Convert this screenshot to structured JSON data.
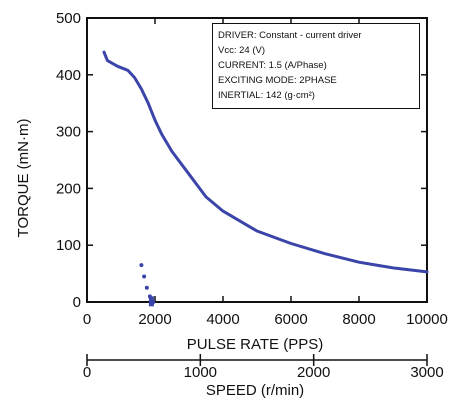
{
  "chart_data": {
    "type": "line",
    "xlabel": "PULSE RATE  (PPS)",
    "ylabel": "TORQUE  (mN·m)",
    "x2label": "SPEED  (r/min)",
    "xlim": [
      0,
      10000
    ],
    "ylim": [
      0,
      500
    ],
    "x2lim": [
      0,
      3000
    ],
    "xticks": [
      0,
      2000,
      4000,
      6000,
      8000,
      10000
    ],
    "yticks": [
      0,
      100,
      200,
      300,
      400,
      500
    ],
    "x2ticks": [
      0,
      1000,
      2000,
      3000
    ],
    "x_tick_labels": [
      "0",
      "2000",
      "4000",
      "6000",
      "8000",
      "10000"
    ],
    "y_tick_labels": [
      "0",
      "100",
      "200",
      "300",
      "400",
      "500"
    ],
    "x2_tick_labels": [
      "0",
      "1000",
      "2000",
      "3000"
    ],
    "grid": false,
    "line_color": "#3b44a8",
    "series": [
      {
        "x": [
          500,
          600,
          900,
          1200,
          1400,
          1600,
          1800,
          2000,
          2200,
          2500,
          3000,
          3500,
          4000,
          5000,
          6000,
          7000,
          8000,
          9000,
          10000
        ],
        "y": [
          440,
          425,
          415,
          408,
          395,
          375,
          350,
          320,
          295,
          265,
          225,
          185,
          160,
          125,
          103,
          85,
          70,
          60,
          53
        ]
      }
    ],
    "dotted_series": {
      "x": [
        1600,
        1680,
        1760,
        1850,
        1900,
        1950
      ],
      "y": [
        65,
        45,
        25,
        10,
        5,
        0
      ]
    },
    "annotation": {
      "lines": [
        "DRIVER: Constant - current driver",
        "Vcc: 24 (V)",
        "CURRENT: 1.5 (A/Phase)",
        "EXCITING MODE: 2PHASE",
        "INERTIAL: 142 (g·cm²)"
      ]
    }
  }
}
